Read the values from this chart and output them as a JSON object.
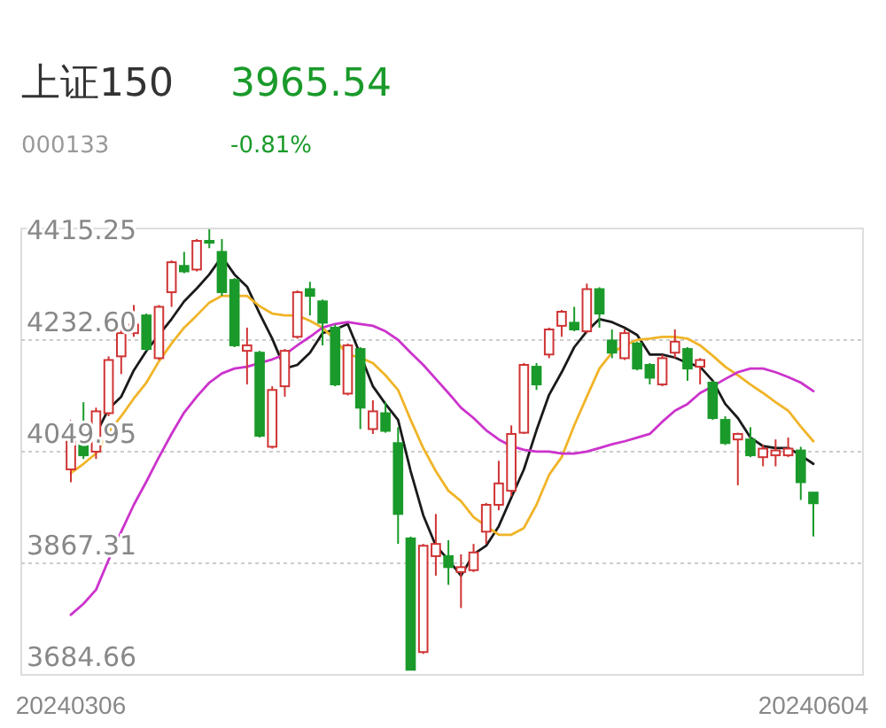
{
  "chart_data": {
    "type": "candlestick",
    "title": "上证150",
    "subtitle": "000133",
    "annotations": [
      "3965.54",
      "-0.81%"
    ],
    "categories": [
      "20240306",
      null,
      null,
      null,
      null,
      null,
      null,
      null,
      null,
      null,
      null,
      null,
      null,
      null,
      null,
      null,
      null,
      null,
      null,
      null,
      null,
      null,
      null,
      null,
      null,
      null,
      null,
      null,
      null,
      null,
      null,
      null,
      null,
      null,
      null,
      null,
      null,
      null,
      null,
      null,
      null,
      null,
      null,
      null,
      null,
      null,
      null,
      null,
      null,
      null,
      null,
      null,
      null,
      null,
      null,
      null,
      null,
      null,
      null,
      "20240604"
    ],
    "ohlc": [
      [
        4021,
        4102,
        4000,
        4076
      ],
      [
        4070,
        4131,
        4038,
        4044
      ],
      [
        4050,
        4122,
        4038,
        4116
      ],
      [
        4113,
        4206,
        4108,
        4200
      ],
      [
        4206,
        4253,
        4177,
        4244
      ],
      [
        4244,
        4290,
        4238,
        4258
      ],
      [
        4273,
        4276,
        4215,
        4218
      ],
      [
        4203,
        4290,
        4200,
        4287
      ],
      [
        4311,
        4363,
        4287,
        4360
      ],
      [
        4354,
        4377,
        4342,
        4345
      ],
      [
        4348,
        4398,
        4345,
        4395
      ],
      [
        4395,
        4414,
        4383,
        4392
      ],
      [
        4377,
        4398,
        4305,
        4311
      ],
      [
        4331,
        4334,
        4221,
        4224
      ],
      [
        4215,
        4253,
        4160,
        4224
      ],
      [
        4212,
        4215,
        4073,
        4076
      ],
      [
        4058,
        4157,
        4055,
        4151
      ],
      [
        4157,
        4218,
        4140,
        4215
      ],
      [
        4238,
        4314,
        4235,
        4311
      ],
      [
        4316,
        4328,
        4273,
        4305
      ],
      [
        4296,
        4299,
        4224,
        4261
      ],
      [
        4253,
        4258,
        4157,
        4160
      ],
      [
        4145,
        4227,
        4142,
        4224
      ],
      [
        4218,
        4221,
        4087,
        4122
      ],
      [
        4087,
        4134,
        4079,
        4116
      ],
      [
        4113,
        4131,
        4081,
        4084
      ],
      [
        4064,
        4090,
        3899,
        3948
      ],
      [
        3908,
        3911,
        3693,
        3693
      ],
      [
        3722,
        3899,
        3719,
        3896
      ],
      [
        3879,
        3948,
        3847,
        3899
      ],
      [
        3879,
        3905,
        3832,
        3861
      ],
      [
        3853,
        3882,
        3794,
        3861
      ],
      [
        3856,
        3899,
        3853,
        3885
      ],
      [
        3919,
        3966,
        3899,
        3963
      ],
      [
        3963,
        4035,
        3954,
        3998
      ],
      [
        3986,
        4093,
        3977,
        4079
      ],
      [
        4081,
        4195,
        4079,
        4192
      ],
      [
        4189,
        4195,
        4151,
        4160
      ],
      [
        4209,
        4253,
        4203,
        4250
      ],
      [
        4256,
        4282,
        4238,
        4279
      ],
      [
        4261,
        4287,
        4247,
        4250
      ],
      [
        4247,
        4325,
        4244,
        4316
      ],
      [
        4316,
        4319,
        4253,
        4276
      ],
      [
        4232,
        4250,
        4203,
        4212
      ],
      [
        4203,
        4250,
        4200,
        4244
      ],
      [
        4227,
        4230,
        4183,
        4186
      ],
      [
        4192,
        4195,
        4160,
        4171
      ],
      [
        4160,
        4209,
        4157,
        4203
      ],
      [
        4212,
        4250,
        4203,
        4230
      ],
      [
        4218,
        4221,
        4166,
        4186
      ],
      [
        4189,
        4203,
        4160,
        4200
      ],
      [
        4163,
        4166,
        4102,
        4105
      ],
      [
        4102,
        4108,
        4061,
        4064
      ],
      [
        4070,
        4081,
        3995,
        4079
      ],
      [
        4070,
        4090,
        4041,
        4044
      ],
      [
        4041,
        4061,
        4026,
        4055
      ],
      [
        4044,
        4070,
        4026,
        4052
      ],
      [
        4044,
        4073,
        4041,
        4055
      ],
      [
        4052,
        4058,
        3971,
        4000
      ],
      [
        3983,
        3983,
        3911,
        3965.54
      ]
    ],
    "series": [
      {
        "type": "line",
        "color": "#1a1a1a",
        "values": [
          4070,
          4073,
          4079,
          4120,
          4140,
          4183,
          4215,
          4241,
          4267,
          4296,
          4317,
          4340,
          4369,
          4340,
          4320,
          4276,
          4235,
          4186,
          4192,
          4212,
          4244,
          4250,
          4259,
          4209,
          4157,
          4128,
          4102,
          4018,
          3946,
          3896,
          3873,
          3847,
          3882,
          3896,
          3928,
          3975,
          4021,
          4085,
          4143,
          4180,
          4221,
          4247,
          4267,
          4262,
          4253,
          4241,
          4209,
          4209,
          4204,
          4195,
          4189,
          4166,
          4128,
          4105,
          4073,
          4059,
          4056,
          4056,
          4044,
          4030
        ]
      },
      {
        "type": "line",
        "color": "#f0b428",
        "values": [
          4015,
          4030,
          4047,
          4082,
          4108,
          4137,
          4163,
          4198,
          4227,
          4253,
          4273,
          4294,
          4305,
          4305,
          4305,
          4288,
          4276,
          4273,
          4273,
          4264,
          4253,
          4233,
          4209,
          4204,
          4195,
          4175,
          4151,
          4102,
          4056,
          4018,
          3986,
          3969,
          3943,
          3928,
          3914,
          3914,
          3925,
          3963,
          4012,
          4041,
          4093,
          4140,
          4186,
          4212,
          4224,
          4233,
          4235,
          4238,
          4238,
          4235,
          4224,
          4207,
          4189,
          4175,
          4160,
          4146,
          4131,
          4117,
          4091,
          4067
        ]
      },
      {
        "type": "line",
        "color": "#cc33cc",
        "values": [
          3783,
          3801,
          3824,
          3873,
          3919,
          3963,
          4001,
          4041,
          4079,
          4114,
          4140,
          4163,
          4178,
          4186,
          4189,
          4195,
          4201,
          4209,
          4224,
          4238,
          4253,
          4259,
          4262,
          4259,
          4256,
          4247,
          4233,
          4212,
          4192,
          4169,
          4146,
          4122,
          4105,
          4085,
          4070,
          4059,
          4053,
          4050,
          4050,
          4047,
          4047,
          4050,
          4056,
          4062,
          4067,
          4073,
          4079,
          4099,
          4117,
          4128,
          4146,
          4157,
          4169,
          4180,
          4186,
          4186,
          4180,
          4172,
          4163,
          4149
        ]
      }
    ],
    "ylim": [
      3684.66,
      4415.25
    ],
    "yticks": [
      4415.25,
      {
        "value": 4232.6,
        "label": "4232.60"
      },
      4049.95,
      3867.31,
      3684.66
    ],
    "grid": "y"
  }
}
